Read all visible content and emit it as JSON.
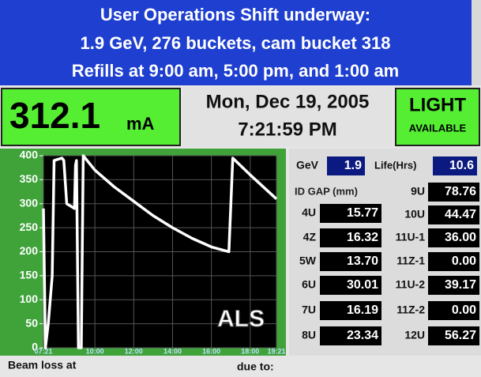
{
  "header": {
    "lines": [
      "User Operations Shift underway:",
      "1.9 GeV, 276 buckets, cam bucket 318",
      "Refills at 9:00 am, 5:00 pm, and 1:00 am"
    ]
  },
  "beam": {
    "current": "312.1",
    "unit": "mA"
  },
  "datetime": {
    "date": "Mon, Dec 19, 2005",
    "time": "7:21:59 PM"
  },
  "light": {
    "status": "LIGHT",
    "detail": "AVAILABLE"
  },
  "chart_data": {
    "type": "line",
    "annotation": "ALS",
    "color": "#ffffff",
    "grid": true,
    "x": [
      7.35,
      7.45,
      7.6,
      7.8,
      7.9,
      8.3,
      8.4,
      8.55,
      8.95,
      9.0,
      9.05,
      9.15,
      9.3,
      9.4,
      10,
      11,
      12,
      13,
      14,
      15,
      16,
      16.9,
      17.1,
      18,
      19.35
    ],
    "values": [
      290,
      0,
      50,
      150,
      390,
      395,
      390,
      300,
      290,
      380,
      390,
      0,
      0,
      400,
      370,
      335,
      305,
      275,
      250,
      228,
      210,
      200,
      395,
      360,
      310
    ],
    "xlim": [
      7.35,
      19.35
    ],
    "xticks": [
      {
        "value": 7.35,
        "label": "07:21"
      },
      {
        "value": 10,
        "label": "10:00"
      },
      {
        "value": 12,
        "label": "12:00"
      },
      {
        "value": 14,
        "label": "14:00"
      },
      {
        "value": 16,
        "label": "16:00"
      },
      {
        "value": 18,
        "label": "18:00"
      },
      {
        "value": 19.35,
        "label": "19:21"
      }
    ],
    "ylim": [
      0,
      400
    ],
    "yticks": [
      0,
      50,
      100,
      150,
      200,
      250,
      300,
      350,
      400
    ]
  },
  "readings": {
    "energy_label": "GeV",
    "energy": "1.9",
    "life_label": "Life(Hrs)",
    "life": "10.6",
    "gap_header": "ID  GAP (mm)",
    "left": [
      {
        "id": "4U",
        "gap": "15.77"
      },
      {
        "id": "4Z",
        "gap": "16.32"
      },
      {
        "id": "5W",
        "gap": "13.70"
      },
      {
        "id": "6U",
        "gap": "30.01"
      },
      {
        "id": "7U",
        "gap": "16.19"
      },
      {
        "id": "8U",
        "gap": "23.34"
      }
    ],
    "right": [
      {
        "id": "9U",
        "gap": "78.76"
      },
      {
        "id": "10U",
        "gap": "44.47"
      },
      {
        "id": "11U-1",
        "gap": "36.00"
      },
      {
        "id": "11Z-1",
        "gap": "0.00"
      },
      {
        "id": "11U-2",
        "gap": "39.17"
      },
      {
        "id": "11Z-2",
        "gap": "0.00"
      },
      {
        "id": "12U",
        "gap": "56.27"
      }
    ]
  },
  "footer": {
    "beam_loss": "Beam loss at",
    "due_to": "due to:"
  }
}
